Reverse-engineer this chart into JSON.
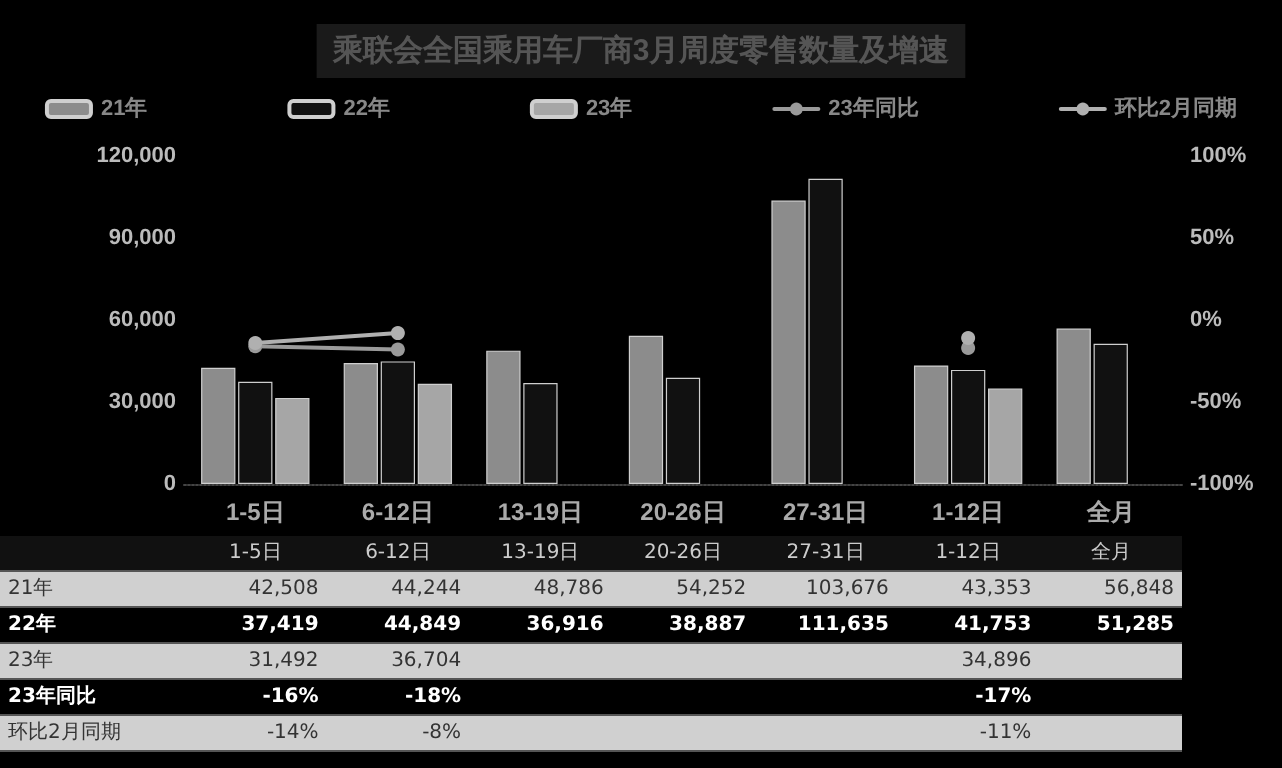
{
  "chart_data": {
    "type": "bar",
    "title": "乘联会全国乘用车厂商3月周度零售数量及增速",
    "categories": [
      "1-5日",
      "6-12日",
      "13-19日",
      "20-26日",
      "27-31日",
      "1-12日",
      "全月"
    ],
    "series": [
      {
        "name": "21年",
        "color": "#8c8c8c",
        "values": [
          42508,
          44244,
          48786,
          54252,
          103676,
          43353,
          56848
        ],
        "value_labels": [
          "42,508",
          "44,244",
          "48,786",
          "54,252",
          "103,676",
          "43,353",
          "56,848"
        ]
      },
      {
        "name": "22年",
        "color": "#111111",
        "values": [
          37419,
          44849,
          36916,
          38887,
          111635,
          41753,
          51285
        ],
        "value_labels": [
          "37,419",
          "44,849",
          "36,916",
          "38,887",
          "111,635",
          "41,753",
          "51,285"
        ]
      },
      {
        "name": "23年",
        "color": "#a6a6a6",
        "values": [
          31492,
          36704,
          null,
          null,
          null,
          34896,
          null
        ],
        "value_labels": [
          "31,492",
          "36,704",
          null,
          null,
          null,
          "34,896",
          null
        ]
      },
      {
        "name": "23年同比",
        "type": "line",
        "axis": "y2",
        "color": "#9a9a9a",
        "values": [
          -16,
          -18,
          null,
          null,
          null,
          -17,
          null
        ],
        "value_labels": [
          "-16%",
          "-18%",
          null,
          null,
          null,
          "-17%",
          null
        ]
      },
      {
        "name": "环比2月同期",
        "type": "line",
        "axis": "y2",
        "color": "#b0b0b0",
        "values": [
          -14,
          -8,
          null,
          null,
          null,
          -11,
          null
        ],
        "value_labels": [
          "-14%",
          "-8%",
          null,
          null,
          null,
          "-11%",
          null
        ]
      }
    ],
    "ylim": [
      0,
      120000
    ],
    "yticks": [
      {
        "value": 0,
        "label": "0"
      },
      {
        "value": 30000,
        "label": "30,000"
      },
      {
        "value": 60000,
        "label": "60,000"
      },
      {
        "value": 90000,
        "label": "90,000"
      },
      {
        "value": 120000,
        "label": "120,000"
      }
    ],
    "y2lim": [
      -100,
      100
    ],
    "y2ticks": [
      {
        "value": -100,
        "label": "-100%"
      },
      {
        "value": -50,
        "label": "-50%"
      },
      {
        "value": 0,
        "label": "0%"
      },
      {
        "value": 50,
        "label": "50%"
      },
      {
        "value": 100,
        "label": "100%"
      }
    ],
    "legend": "top",
    "marker": "circle",
    "line_style": "solid",
    "grid": false
  }
}
